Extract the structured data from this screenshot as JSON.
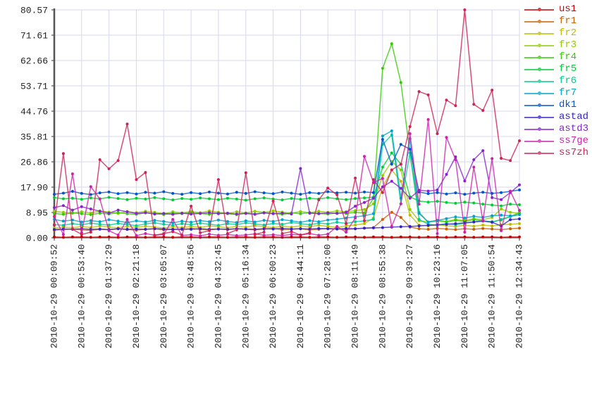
{
  "page": {
    "background": "#ffffff",
    "grid_color": "#d7d7f0",
    "axis_color": "#555555",
    "tick_text_color": "#222222"
  },
  "chart_data": {
    "type": "line",
    "title": "",
    "xlabel": "",
    "ylabel": "",
    "grid": true,
    "legend_position": "right",
    "ylim": [
      0,
      80.57
    ],
    "y_tick_labels": [
      "80.57",
      "71.61",
      "62.66",
      "53.71",
      "44.76",
      "35.81",
      "26.86",
      "17.90",
      "8.95",
      "0.00"
    ],
    "x_tick_labels": [
      "2010-10-29 00:09:52",
      "2010-10-29 00:53:40",
      "2010-10-29 01:37:29",
      "2010-10-29 02:21:18",
      "2010-10-29 03:05:07",
      "2010-10-29 03:48:56",
      "2010-10-29 04:32:45",
      "2010-10-29 05:16:34",
      "2010-10-29 06:00:23",
      "2010-10-29 06:44:11",
      "2010-10-29 07:28:00",
      "2010-10-29 08:11:49",
      "2010-10-29 08:55:38",
      "2010-10-29 09:39:27",
      "2010-10-29 10:23:16",
      "2010-10-29 11:07:05",
      "2010-10-29 11:50:54",
      "2010-10-29 12:34:43"
    ],
    "points_per_tick": 3,
    "series": [
      {
        "name": "us1",
        "color": "#cc0000",
        "values": [
          0.3,
          0.2,
          0.3,
          0.3,
          0.2,
          0.3,
          0.3,
          0.2,
          0.3,
          0.3,
          0.2,
          0.3,
          0.3,
          0.2,
          0.3,
          0.3,
          0.2,
          0.3,
          0.3,
          0.2,
          0.3,
          0.3,
          0.2,
          0.3,
          0.3,
          0.2,
          0.3,
          0.3,
          0.2,
          0.3,
          0.3,
          0.2,
          0.3,
          0.3,
          0.2,
          0.3,
          0.3,
          0.2,
          0.3,
          0.3,
          0.2,
          0.3,
          0.3,
          0.2,
          0.3,
          0.3,
          0.2,
          0.3,
          0.3,
          0.2,
          0.3,
          0.3
        ]
      },
      {
        "name": "fr1",
        "color": "#cc5f00",
        "values": [
          2.7,
          2.9,
          3.1,
          2.8,
          2.6,
          3.0,
          2.8,
          3.2,
          2.9,
          2.7,
          3.0,
          3.2,
          2.8,
          3.1,
          2.9,
          3.3,
          3.0,
          2.8,
          3.1,
          2.9,
          3.2,
          3.0,
          2.8,
          3.1,
          3.3,
          2.9,
          3.0,
          3.2,
          2.8,
          3.0,
          3.3,
          3.1,
          2.9,
          3.2,
          3.4,
          3.6,
          6.5,
          9.0,
          7.2,
          3.8,
          3.2,
          3.0,
          3.3,
          3.1,
          2.9,
          3.2,
          3.0,
          3.3,
          3.1,
          2.9,
          3.2,
          3.4
        ]
      },
      {
        "name": "fr2",
        "color": "#bcbc00",
        "values": [
          3.4,
          3.8,
          3.5,
          4.0,
          3.6,
          4.2,
          3.8,
          3.5,
          4.0,
          3.7,
          4.1,
          3.8,
          3.4,
          3.9,
          3.6,
          4.0,
          3.7,
          4.2,
          3.9,
          3.5,
          4.1,
          3.8,
          4.3,
          3.9,
          3.6,
          4.1,
          3.8,
          4.2,
          3.9,
          4.4,
          4.0,
          3.7,
          4.2,
          4.5,
          5.0,
          7.0,
          18.0,
          24.0,
          20.0,
          8.0,
          4.5,
          4.2,
          4.6,
          4.3,
          4.0,
          4.4,
          4.1,
          4.5,
          4.2,
          4.6,
          4.8,
          5.0
        ]
      },
      {
        "name": "fr3",
        "color": "#8fcc00",
        "values": [
          9.4,
          9.0,
          8.7,
          9.2,
          8.8,
          9.5,
          9.1,
          8.6,
          9.3,
          8.9,
          9.4,
          9.0,
          8.5,
          9.2,
          8.8,
          9.3,
          8.9,
          9.5,
          9.0,
          8.6,
          9.2,
          8.8,
          9.4,
          9.0,
          9.5,
          9.1,
          8.7,
          9.3,
          8.9,
          9.4,
          9.0,
          9.5,
          9.2,
          9.6,
          10.0,
          12.0,
          22.0,
          27.0,
          24.0,
          10.0,
          6.0,
          5.6,
          6.2,
          5.8,
          6.5,
          6.1,
          6.8,
          6.4,
          7.2,
          10.2,
          9.0,
          8.6
        ]
      },
      {
        "name": "fr4",
        "color": "#33cc00",
        "values": [
          8.6,
          8.3,
          8.8,
          8.5,
          8.2,
          8.7,
          8.4,
          8.9,
          8.5,
          8.3,
          8.8,
          8.6,
          8.2,
          8.7,
          8.5,
          8.9,
          8.6,
          8.3,
          8.8,
          8.5,
          8.2,
          8.7,
          8.4,
          8.9,
          8.6,
          8.3,
          8.8,
          8.5,
          8.9,
          8.6,
          8.4,
          8.8,
          8.6,
          9.0,
          8.8,
          14.0,
          59.9,
          68.6,
          54.9,
          30.0,
          9.0,
          5.5,
          6.0,
          5.6,
          6.2,
          5.8,
          6.4,
          6.0,
          5.7,
          6.3,
          7.5,
          8.9
        ]
      },
      {
        "name": "fr5",
        "color": "#00cc33",
        "values": [
          14.2,
          13.8,
          14.0,
          13.6,
          14.1,
          13.8,
          14.3,
          13.9,
          13.5,
          14.0,
          13.7,
          14.2,
          13.8,
          13.4,
          13.9,
          13.6,
          14.1,
          13.8,
          13.5,
          14.0,
          13.7,
          13.3,
          13.8,
          14.1,
          13.7,
          13.4,
          13.9,
          13.6,
          14.0,
          13.7,
          14.2,
          13.8,
          13.5,
          13.9,
          14.1,
          14.4,
          25.0,
          30.0,
          26.0,
          14.5,
          13.0,
          12.6,
          12.9,
          12.5,
          12.2,
          12.6,
          12.3,
          11.9,
          11.6,
          11.3,
          11.9,
          11.7
        ]
      },
      {
        "name": "fr6",
        "color": "#00cc8f",
        "values": [
          4.7,
          4.4,
          5.0,
          4.6,
          5.2,
          4.8,
          4.5,
          5.1,
          4.7,
          4.3,
          4.9,
          5.3,
          4.8,
          4.4,
          5.0,
          4.6,
          5.2,
          4.8,
          4.4,
          5.0,
          4.7,
          5.3,
          4.9,
          4.5,
          5.1,
          4.8,
          5.4,
          5.0,
          4.6,
          5.2,
          4.9,
          5.5,
          5.1,
          5.7,
          6.0,
          6.5,
          33.0,
          36.3,
          12.0,
          30.0,
          6.5,
          4.8,
          4.4,
          5.0,
          4.6,
          5.2,
          5.6,
          6.0,
          5.5,
          6.5,
          7.5,
          8.2
        ]
      },
      {
        "name": "fr7",
        "color": "#00a3cc",
        "values": [
          6.5,
          5.9,
          6.3,
          5.6,
          6.1,
          5.7,
          6.4,
          5.9,
          5.4,
          6.0,
          5.6,
          6.2,
          5.8,
          5.3,
          5.9,
          5.5,
          6.1,
          5.7,
          6.3,
          5.8,
          5.4,
          6.0,
          5.6,
          6.2,
          5.8,
          6.4,
          6.0,
          5.5,
          6.1,
          5.7,
          6.3,
          6.6,
          7.0,
          7.4,
          7.8,
          8.5,
          36.0,
          37.8,
          14.0,
          35.0,
          8.6,
          5.6,
          6.2,
          6.8,
          7.4,
          7.0,
          7.6,
          7.2,
          7.8,
          8.0,
          7.8,
          8.2
        ]
      },
      {
        "name": "dk1",
        "color": "#0055cc",
        "values": [
          15.4,
          15.8,
          16.4,
          15.7,
          15.3,
          15.9,
          16.2,
          15.6,
          16.0,
          15.5,
          16.1,
          15.8,
          16.3,
          15.7,
          15.4,
          16.0,
          15.6,
          16.2,
          15.8,
          15.5,
          16.1,
          15.7,
          16.3,
          15.9,
          15.6,
          16.2,
          15.8,
          15.4,
          16.0,
          15.7,
          16.3,
          15.9,
          16.1,
          15.8,
          16.2,
          16.0,
          34.8,
          26.0,
          33.0,
          31.3,
          16.2,
          15.6,
          16.0,
          15.5,
          15.9,
          15.4,
          15.8,
          16.1,
          15.7,
          16.0,
          16.4,
          16.9
        ]
      },
      {
        "name": "astad",
        "color": "#3322cc",
        "values": [
          2.9,
          3.1,
          3.0,
          3.2,
          3.0,
          3.1,
          2.9,
          3.2,
          3.0,
          3.1,
          3.0,
          3.2,
          3.1,
          2.9,
          3.1,
          3.0,
          3.2,
          3.0,
          3.1,
          3.0,
          3.2,
          3.1,
          3.0,
          3.2,
          3.1,
          3.3,
          3.1,
          3.2,
          3.1,
          3.3,
          3.2,
          3.1,
          3.3,
          3.2,
          3.4,
          3.5,
          3.6,
          3.8,
          3.9,
          4.0,
          4.2,
          4.4,
          4.6,
          4.8,
          5.0,
          5.3,
          5.6,
          5.9,
          5.5,
          4.2,
          6.4,
          6.7
        ]
      },
      {
        "name": "astd3",
        "color": "#8822cc",
        "values": [
          10.7,
          11.4,
          9.8,
          11.0,
          10.2,
          9.4,
          8.7,
          9.8,
          9.2,
          8.6,
          8.9,
          8.4,
          8.6,
          8.3,
          8.7,
          8.4,
          8.6,
          8.9,
          8.5,
          8.7,
          8.4,
          8.6,
          8.3,
          8.8,
          8.5,
          8.7,
          8.4,
          24.5,
          8.7,
          8.5,
          8.8,
          8.6,
          9.0,
          11.2,
          12.5,
          14.0,
          18.0,
          20.0,
          17.5,
          14.0,
          16.8,
          16.5,
          16.9,
          22.4,
          28.6,
          20.1,
          27.6,
          30.8,
          14.2,
          13.5,
          16.0,
          18.7
        ]
      },
      {
        "name": "ss7ge",
        "color": "#cc22aa",
        "values": [
          7.5,
          1.2,
          22.6,
          1.8,
          18.1,
          13.7,
          2.5,
          1.0,
          6.5,
          0.8,
          1.5,
          0.9,
          1.2,
          6.5,
          0.8,
          1.1,
          0.7,
          1.3,
          0.9,
          1.2,
          0.8,
          1.0,
          1.4,
          0.9,
          1.1,
          0.8,
          1.2,
          1.0,
          1.5,
          0.9,
          1.3,
          4.0,
          2.0,
          7.0,
          28.8,
          19.5,
          21.0,
          4.0,
          12.0,
          36.8,
          11.9,
          41.8,
          1.5,
          35.5,
          27.6,
          2.0,
          25.0,
          6.0,
          28.0,
          2.5,
          16.5,
          9.7
        ]
      },
      {
        "name": "ss7zh",
        "color": "#cc2255",
        "values": [
          4.5,
          29.8,
          3.0,
          1.2,
          2.0,
          27.6,
          24.4,
          27.3,
          40.2,
          20.6,
          23.1,
          0.9,
          1.5,
          2.2,
          1.0,
          11.2,
          1.8,
          2.5,
          20.6,
          1.5,
          2.8,
          23.0,
          1.2,
          2.0,
          13.0,
          1.5,
          2.2,
          1.0,
          1.8,
          13.4,
          17.6,
          15.2,
          5.0,
          21.1,
          6.0,
          20.6,
          16.0,
          24.0,
          26.0,
          39.3,
          51.7,
          50.5,
          36.8,
          48.7,
          46.7,
          80.57,
          47.2,
          45.0,
          52.2,
          28.1,
          27.3,
          34.3
        ]
      }
    ]
  }
}
